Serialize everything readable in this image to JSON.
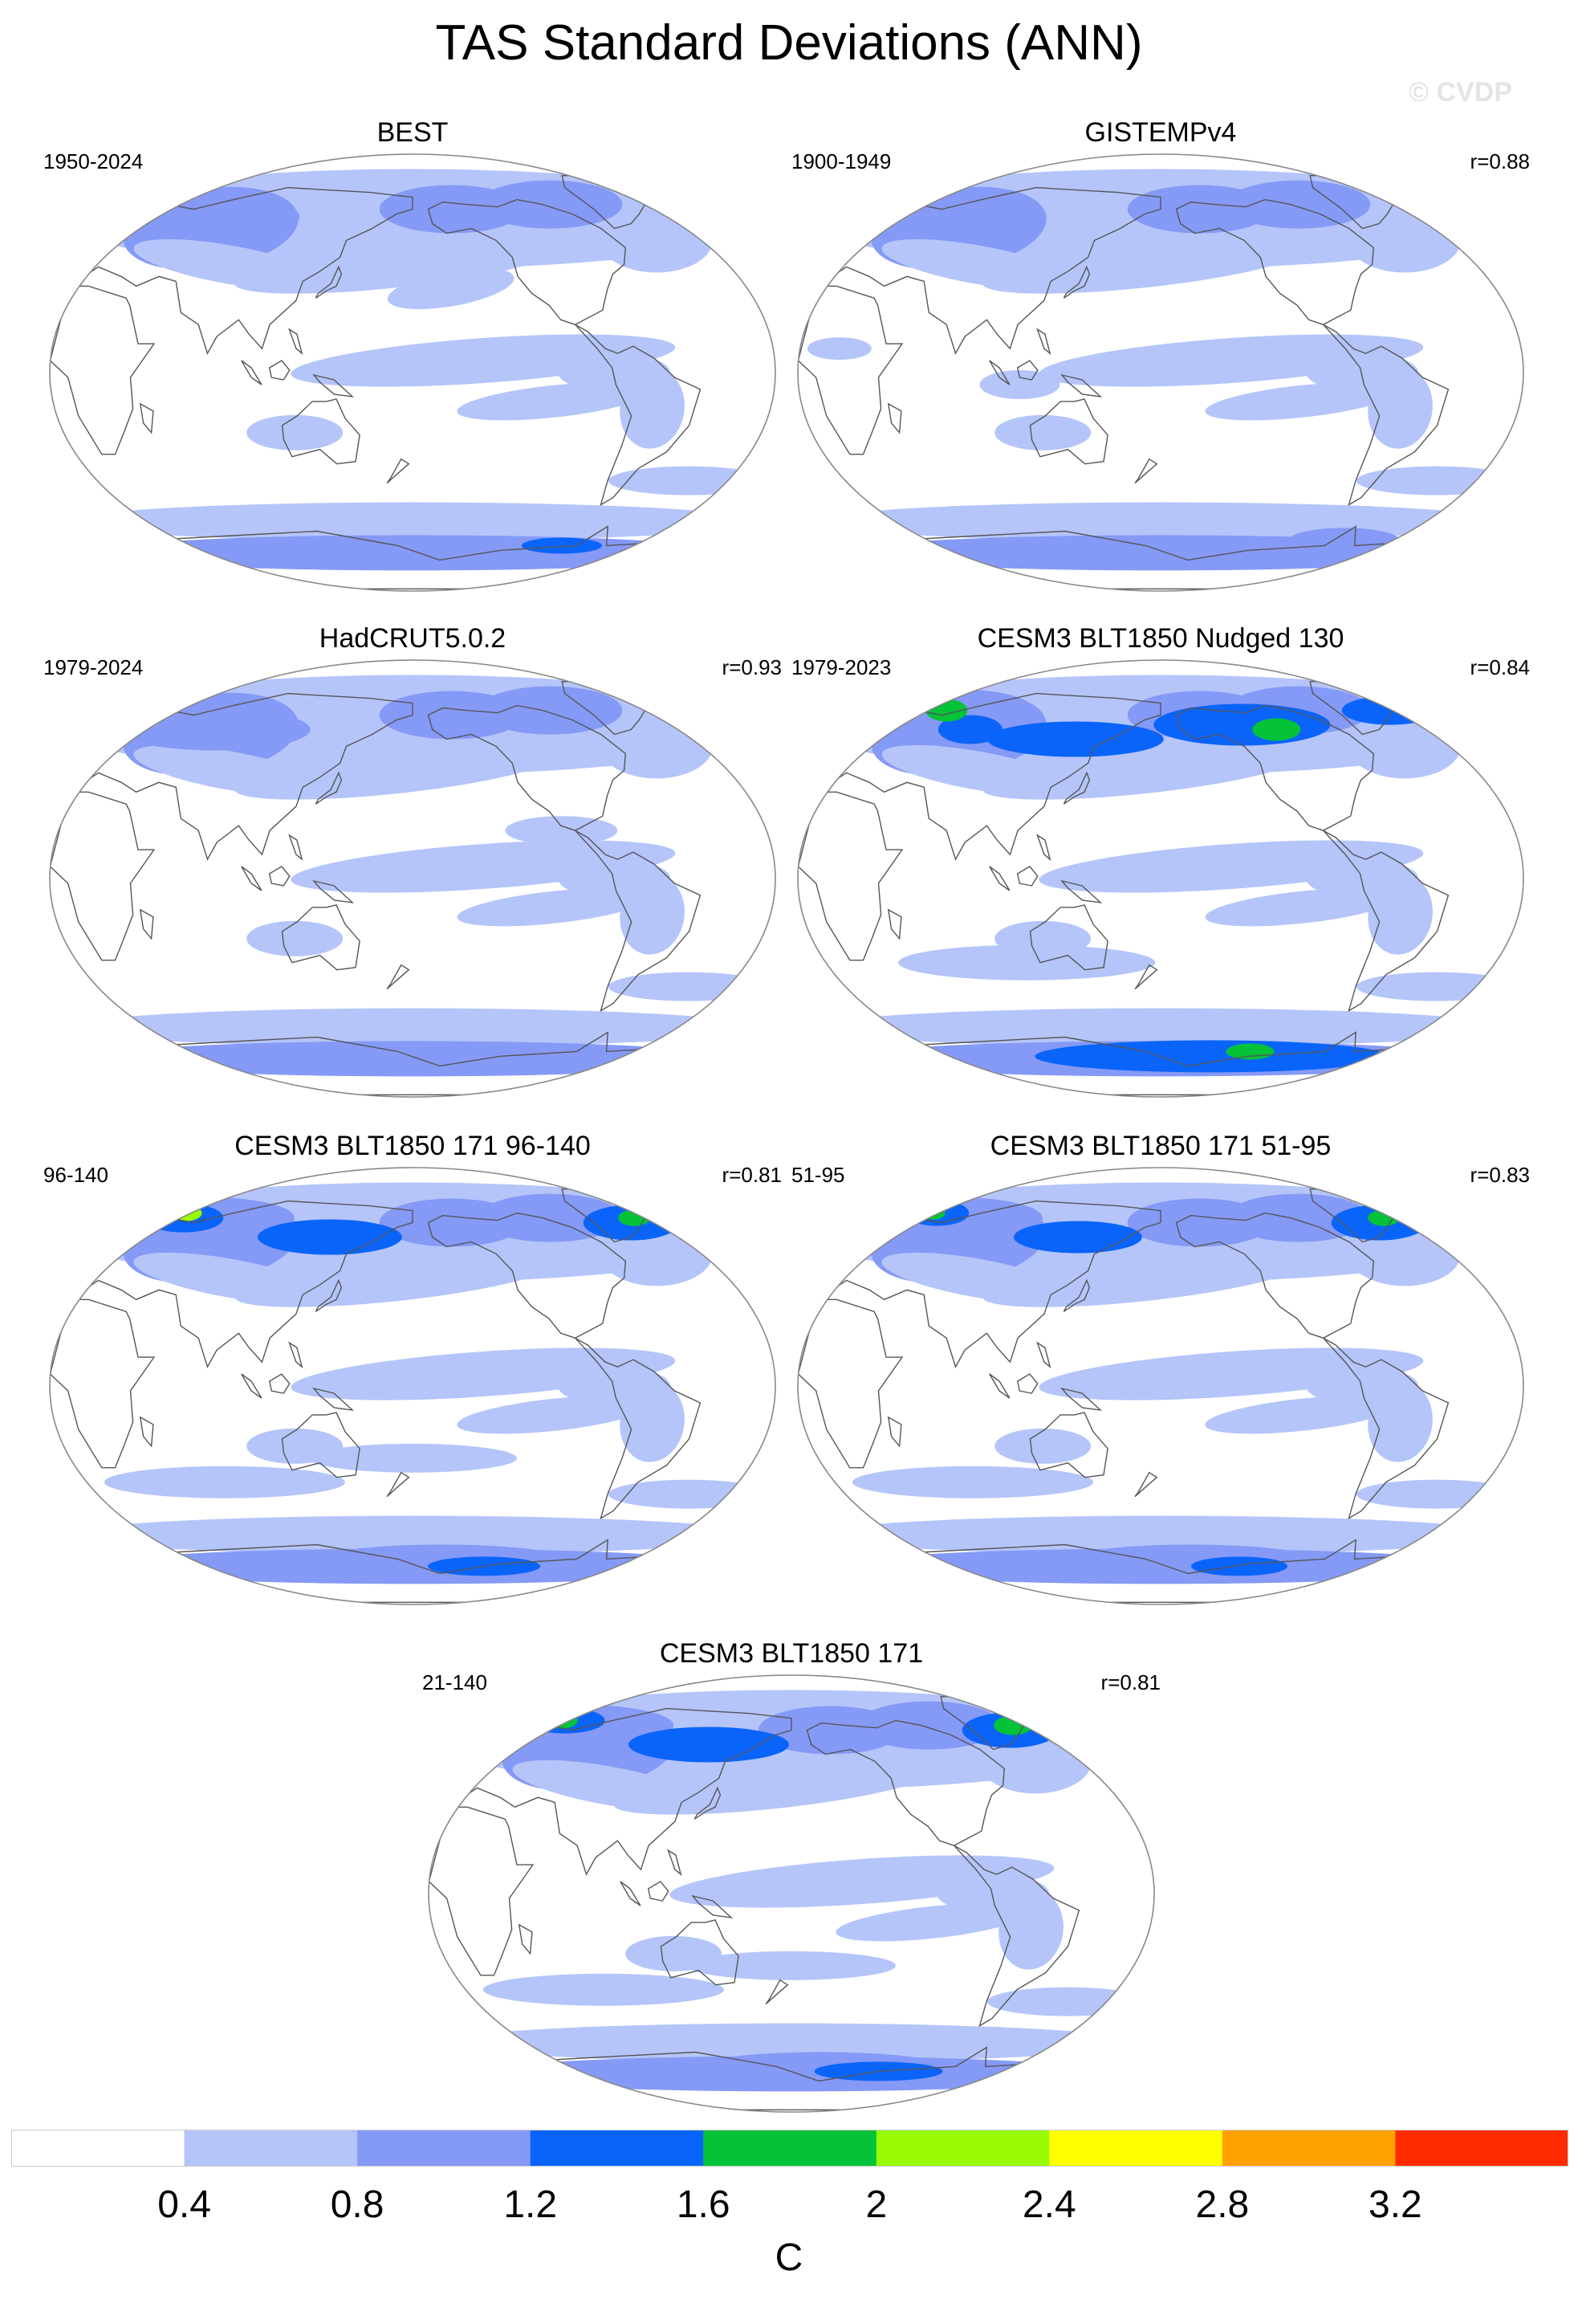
{
  "title": "TAS Standard Deviations (ANN)",
  "watermark": "© CVDP",
  "colors": {
    "levels": [
      "#ffffff",
      "#b5c5fa",
      "#8599f6",
      "#0a64fa",
      "#04c338",
      "#98fb04",
      "#ffff00",
      "#ffa200",
      "#ff2a00"
    ],
    "coastline": "#555555",
    "map_outline": "#888888"
  },
  "panels": [
    {
      "title": "BEST",
      "period": "1950-2024",
      "r": ""
    },
    {
      "title": "GISTEMPv4",
      "period": "1900-1949",
      "r": "r=0.88"
    },
    {
      "title": "HadCRUT5.0.2",
      "period": "1979-2024",
      "r": "r=0.93"
    },
    {
      "title": "CESM3 BLT1850 Nudged 130",
      "period": "1979-2023",
      "r": "r=0.84"
    },
    {
      "title": "CESM3 BLT1850 171 96-140",
      "period": "96-140",
      "r": "r=0.81"
    },
    {
      "title": "CESM3 BLT1850 171 51-95",
      "period": "51-95",
      "r": "r=0.83"
    },
    {
      "title": "CESM3 BLT1850 171",
      "period": "21-140",
      "r": "r=0.81"
    }
  ],
  "colorbar": {
    "labels": [
      "0.4",
      "0.8",
      "1.2",
      "1.6",
      "2",
      "2.4",
      "2.8",
      "3.2"
    ],
    "unit": "C"
  }
}
